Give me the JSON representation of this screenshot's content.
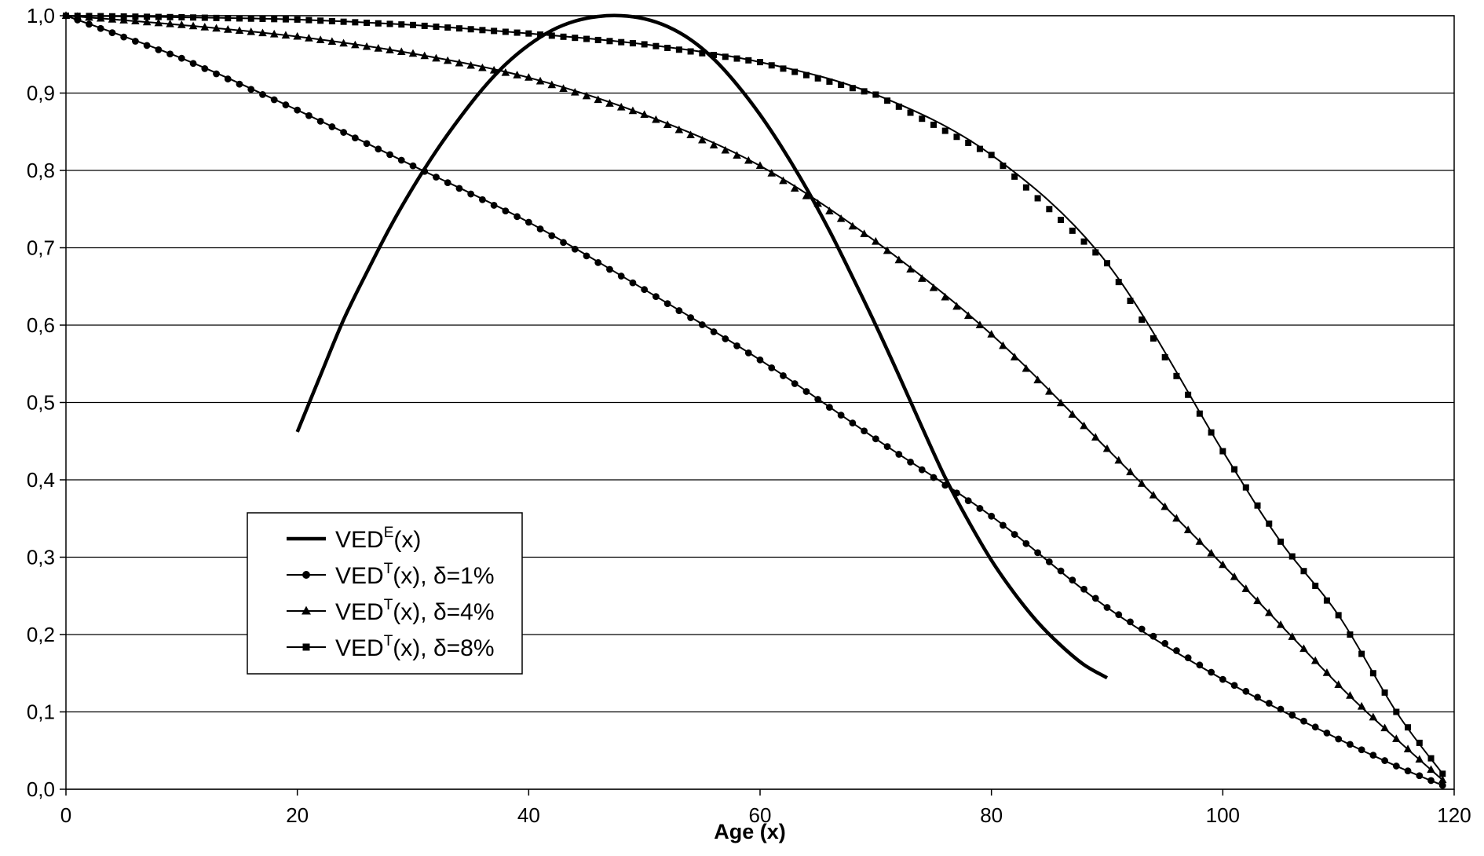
{
  "chart_data": {
    "type": "line",
    "title": "",
    "xlabel": "Age (x)",
    "ylabel": "",
    "xlim": [
      0,
      120
    ],
    "ylim": [
      0,
      1
    ],
    "x_ticks": [
      "0",
      "20",
      "40",
      "60",
      "80",
      "100",
      "120"
    ],
    "y_ticks": [
      "0,0",
      "0,1",
      "0,2",
      "0,3",
      "0,4",
      "0,5",
      "0,6",
      "0,7",
      "0,8",
      "0,9",
      "1,0"
    ],
    "grid": "horizontal",
    "legend_position": "lower-left",
    "series": [
      {
        "name": "VEDE(x)",
        "label_base": "VED",
        "label_sup": "E",
        "label_rest": "(x)",
        "marker": "none",
        "linewidth": "thick",
        "x": [
          20,
          22,
          24,
          26,
          28,
          30,
          32,
          34,
          36,
          38,
          40,
          42,
          44,
          46,
          48,
          50,
          52,
          54,
          56,
          58,
          60,
          62,
          64,
          66,
          68,
          70,
          72,
          74,
          76,
          78,
          80,
          82,
          84,
          86,
          88,
          90
        ],
        "y": [
          0.462,
          0.535,
          0.607,
          0.668,
          0.726,
          0.778,
          0.825,
          0.867,
          0.905,
          0.937,
          0.962,
          0.981,
          0.993,
          0.999,
          1.0,
          0.996,
          0.986,
          0.969,
          0.944,
          0.911,
          0.872,
          0.827,
          0.777,
          0.722,
          0.662,
          0.6,
          0.535,
          0.468,
          0.403,
          0.347,
          0.296,
          0.253,
          0.216,
          0.186,
          0.161,
          0.144
        ]
      },
      {
        "name": "VEDT(x), δ=1%",
        "label_base": "VED",
        "label_sup": "T",
        "label_rest": "(x), δ=1%",
        "marker": "circle",
        "x": [
          0,
          10,
          20,
          30,
          40,
          50,
          60,
          70,
          80,
          90,
          100,
          110,
          115,
          119
        ],
        "y": [
          1.0,
          0.945,
          0.878,
          0.806,
          0.733,
          0.646,
          0.555,
          0.453,
          0.353,
          0.235,
          0.142,
          0.065,
          0.03,
          0.005
        ]
      },
      {
        "name": "VEDT(x), δ=4%",
        "label_base": "VED",
        "label_sup": "T",
        "label_rest": "(x), δ=4%",
        "marker": "triangle",
        "x": [
          0,
          10,
          20,
          30,
          40,
          50,
          60,
          70,
          80,
          90,
          100,
          110,
          115,
          119
        ],
        "y": [
          1.0,
          0.988,
          0.973,
          0.951,
          0.92,
          0.872,
          0.806,
          0.708,
          0.588,
          0.44,
          0.29,
          0.135,
          0.065,
          0.012
        ]
      },
      {
        "name": "VEDT(x), δ=8%",
        "label_base": "VED",
        "label_sup": "T",
        "label_rest": "(x), δ=8%",
        "marker": "square",
        "x": [
          0,
          10,
          20,
          30,
          40,
          50,
          60,
          70,
          80,
          90,
          100,
          105,
          110,
          115,
          119
        ],
        "y": [
          1.0,
          0.998,
          0.995,
          0.988,
          0.977,
          0.963,
          0.94,
          0.898,
          0.82,
          0.68,
          0.437,
          0.32,
          0.225,
          0.1,
          0.02
        ]
      }
    ]
  }
}
